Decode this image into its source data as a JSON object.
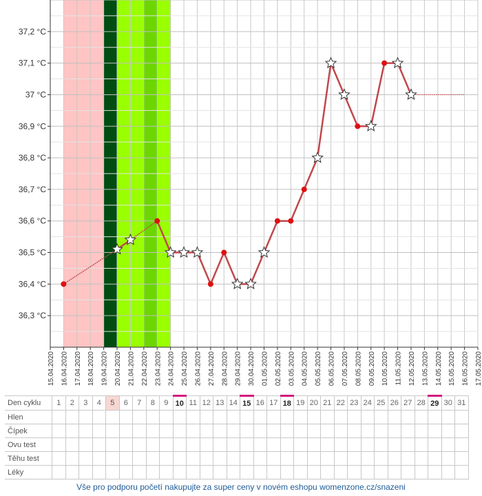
{
  "chart_data": {
    "type": "line",
    "x": [
      "15.04.2020",
      "16.04.2020",
      "17.04.2020",
      "18.04.2020",
      "19.04.2020",
      "20.04.2020",
      "21.04.2020",
      "22.04.2020",
      "23.04.2020",
      "24.04.2020",
      "25.04.2020",
      "26.04.2020",
      "27.04.2020",
      "28.04.2020",
      "29.04.2020",
      "30.04.2020",
      "01.05.2020",
      "02.05.2020",
      "03.05.2020",
      "04.05.2020",
      "05.05.2020",
      "06.05.2020",
      "07.05.2020",
      "08.05.2020",
      "09.05.2020",
      "10.05.2020",
      "11.05.2020",
      "12.05.2020",
      "13.05.2020",
      "14.05.2020",
      "15.05.2020",
      "16.05.2020",
      "17.05.2020"
    ],
    "y_ticks": [
      "36,3 °C",
      "36,4 °C",
      "36,5 °C",
      "36,6 °C",
      "36,7 °C",
      "36,8 °C",
      "36,9 °C",
      "37 °C",
      "37,1 °C",
      "37,2 °C"
    ],
    "ylim": [
      36.2,
      37.3
    ],
    "points": [
      {
        "date": "16.04.2020",
        "value": 36.4,
        "marker": "dot"
      },
      {
        "date": "20.04.2020",
        "value": 36.51,
        "marker": "star"
      },
      {
        "date": "21.04.2020",
        "value": 36.54,
        "marker": "star"
      },
      {
        "date": "23.04.2020",
        "value": 36.6,
        "marker": "dot"
      },
      {
        "date": "24.04.2020",
        "value": 36.5,
        "marker": "star"
      },
      {
        "date": "25.04.2020",
        "value": 36.5,
        "marker": "star"
      },
      {
        "date": "26.04.2020",
        "value": 36.5,
        "marker": "star"
      },
      {
        "date": "27.04.2020",
        "value": 36.4,
        "marker": "dot"
      },
      {
        "date": "28.04.2020",
        "value": 36.5,
        "marker": "dot"
      },
      {
        "date": "29.04.2020",
        "value": 36.4,
        "marker": "star"
      },
      {
        "date": "30.04.2020",
        "value": 36.4,
        "marker": "star"
      },
      {
        "date": "01.05.2020",
        "value": 36.5,
        "marker": "star"
      },
      {
        "date": "02.05.2020",
        "value": 36.6,
        "marker": "dot"
      },
      {
        "date": "03.05.2020",
        "value": 36.6,
        "marker": "dot"
      },
      {
        "date": "04.05.2020",
        "value": 36.7,
        "marker": "dot"
      },
      {
        "date": "05.05.2020",
        "value": 36.8,
        "marker": "star"
      },
      {
        "date": "06.05.2020",
        "value": 37.1,
        "marker": "star"
      },
      {
        "date": "07.05.2020",
        "value": 37.0,
        "marker": "star"
      },
      {
        "date": "08.05.2020",
        "value": 36.9,
        "marker": "dot"
      },
      {
        "date": "09.05.2020",
        "value": 36.9,
        "marker": "star"
      },
      {
        "date": "10.05.2020",
        "value": 37.1,
        "marker": "dot"
      },
      {
        "date": "11.05.2020",
        "value": 37.1,
        "marker": "star"
      },
      {
        "date": "12.05.2020",
        "value": 37.0,
        "marker": "star"
      }
    ],
    "dashed_segments": [
      [
        0,
        1
      ],
      [
        2,
        3
      ]
    ],
    "projection": {
      "from": "12.05.2020",
      "to": "16.05.2020",
      "value": 37.0
    },
    "bands": [
      {
        "from": "16.04.2020",
        "to": "19.04.2020",
        "color": "#ffc4c4"
      },
      {
        "from": "19.04.2020",
        "to": "20.04.2020",
        "color": "#004d11"
      },
      {
        "from": "20.04.2020",
        "to": "22.04.2020",
        "color": "#9aff00"
      },
      {
        "from": "22.04.2020",
        "to": "23.04.2020",
        "color": "#6cd600"
      },
      {
        "from": "23.04.2020",
        "to": "24.04.2020",
        "color": "#9aff00"
      }
    ],
    "line_color": "#c0474b",
    "dot_color": "#dd1111",
    "grid": true
  },
  "cycle_table": {
    "rows": [
      {
        "label": "Den cyklu",
        "days": [
          "1",
          "2",
          "3",
          "4",
          "5",
          "6",
          "7",
          "8",
          "9",
          "10",
          "11",
          "12",
          "13",
          "14",
          "15",
          "16",
          "17",
          "18",
          "19",
          "20",
          "21",
          "22",
          "23",
          "24",
          "25",
          "26",
          "27",
          "28",
          "29",
          "30",
          "31"
        ]
      },
      {
        "label": "Hlen"
      },
      {
        "label": "Čípek"
      },
      {
        "label": "Ovu test"
      },
      {
        "label": "Těhu test"
      },
      {
        "label": "Léky"
      }
    ],
    "highlighted_day": "5",
    "marked_days": [
      "10",
      "15",
      "18",
      "29"
    ],
    "mark_color": "#d4177f",
    "highlight_color": "#f8d7d3"
  },
  "footer": {
    "text": "Vše pro podporu početí nakupujte za super ceny v novém eshopu womenzone.cz/snazeni"
  }
}
